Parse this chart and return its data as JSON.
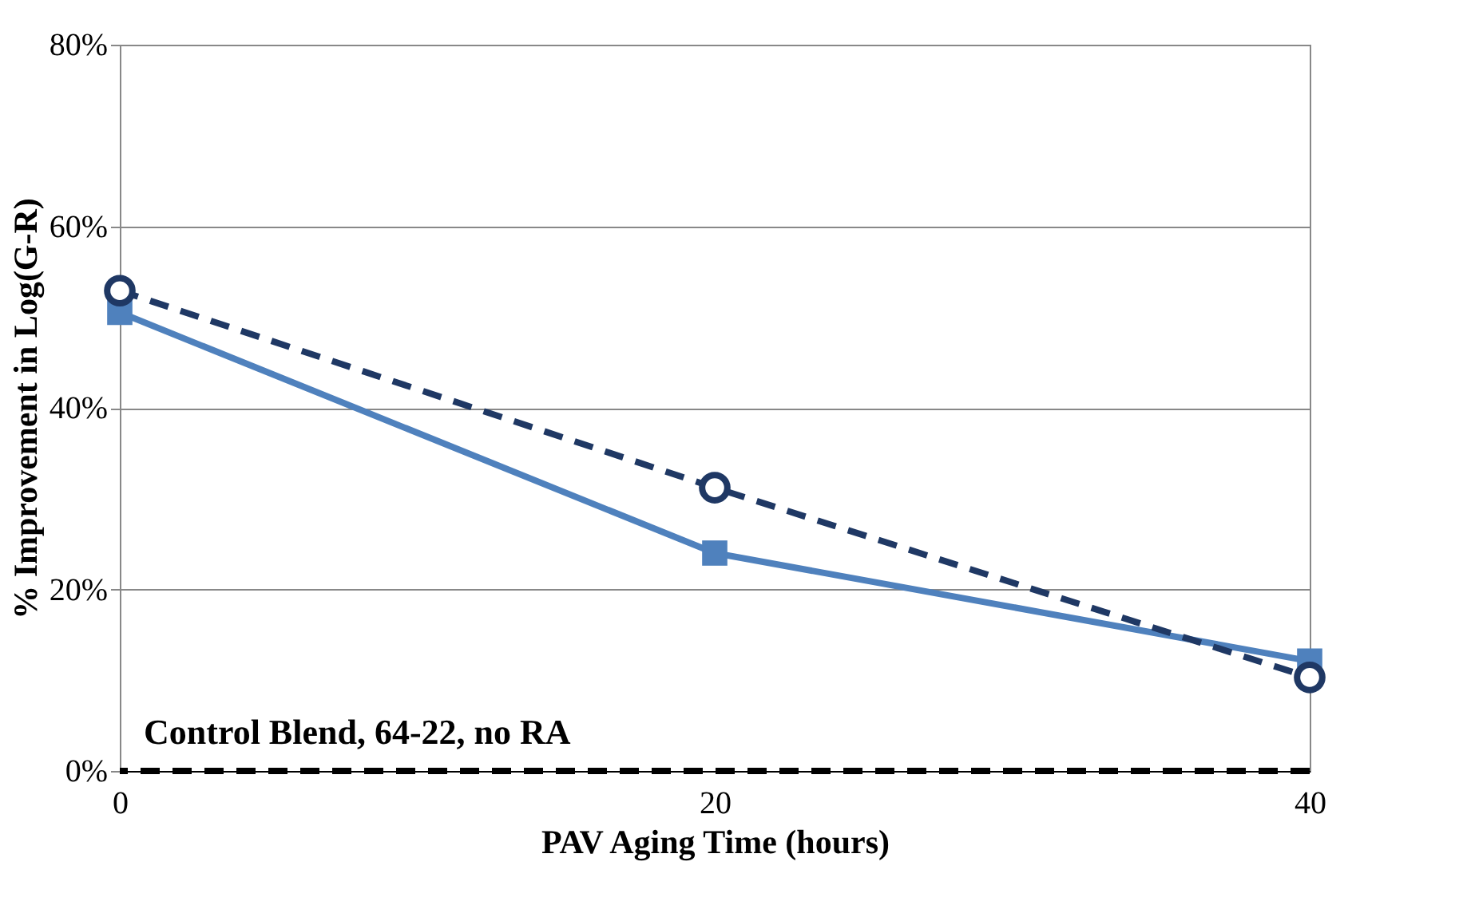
{
  "chart_data": {
    "type": "line",
    "xlabel": "PAV Aging Time (hours)",
    "ylabel": "% Improvement in Log(G-R)",
    "x": [
      0,
      20,
      40
    ],
    "series": [
      {
        "color": "#4f81bd",
        "values": [
          50.5,
          24.0,
          12.1
        ],
        "marker": "square",
        "line_style": "solid"
      },
      {
        "color": "#1f3864",
        "values": [
          52.9,
          31.2,
          10.3
        ],
        "marker": "circle",
        "line_style": "dashed"
      }
    ],
    "xlim": [
      0,
      40
    ],
    "xticks": [
      0,
      20,
      40
    ],
    "ylim": [
      0,
      80
    ],
    "yticks": [
      {
        "value": 0,
        "label": "0%"
      },
      {
        "value": 20,
        "label": "20%"
      },
      {
        "value": 40,
        "label": "40%"
      },
      {
        "value": 60,
        "label": "60%"
      },
      {
        "value": 80,
        "label": "80%"
      }
    ],
    "grid": "y",
    "ref_lines": [
      {
        "axis": "y",
        "value": 0,
        "label": "Control Blend, 64-22, no RA",
        "color": "#000000",
        "line_style": "dashed"
      }
    ]
  }
}
